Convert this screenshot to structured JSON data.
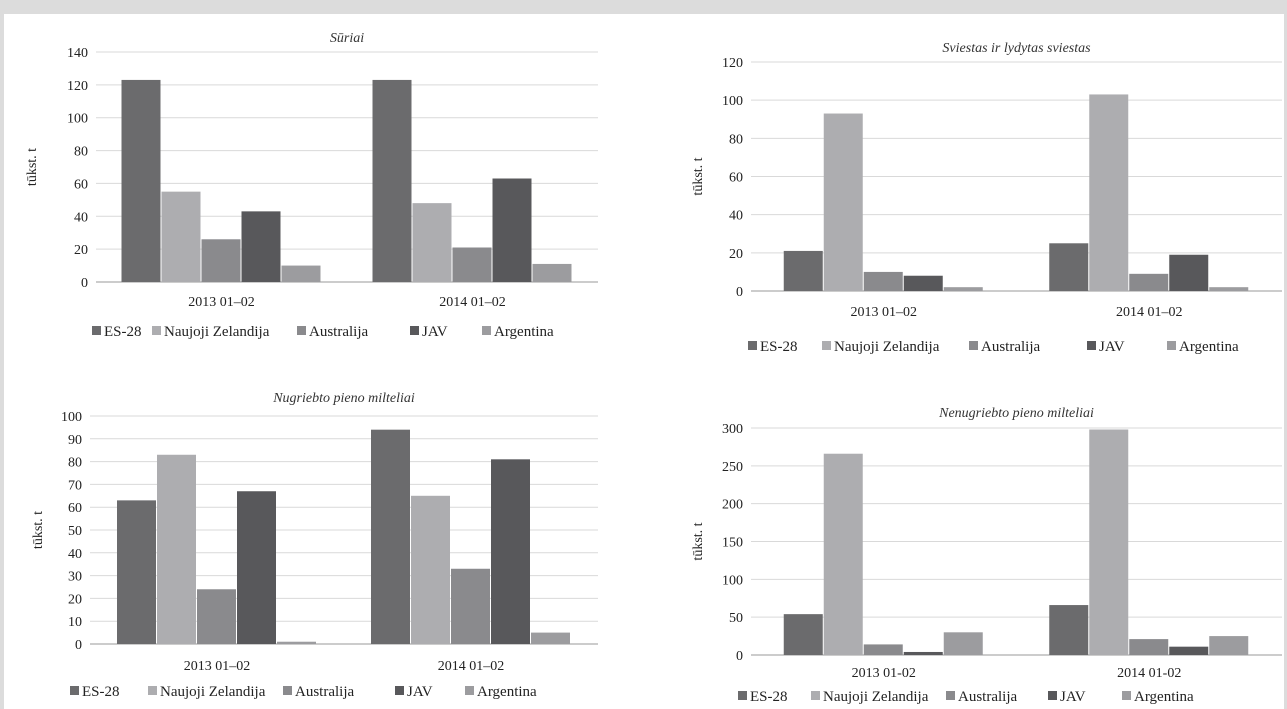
{
  "colors": [
    "#6b6b6d",
    "#adadb0",
    "#8a8a8d",
    "#58585b",
    "#9c9c9f"
  ],
  "legend_labels": [
    "ES-28",
    "Naujoji Zelandija",
    "Australija",
    "JAV",
    "Argentina"
  ],
  "chart_data": [
    {
      "type": "bar",
      "title": "Sūriai",
      "ylabel": "tūkst. t",
      "ylim": [
        0,
        140
      ],
      "yticks": [
        "0",
        "20",
        "40",
        "60",
        "80",
        "100",
        "120",
        "140"
      ],
      "categories": [
        "2013 01–02",
        "2014 01–02"
      ],
      "series": [
        {
          "name": "ES-28",
          "values": [
            123,
            123
          ]
        },
        {
          "name": "Naujoji Zelandija",
          "values": [
            55,
            48
          ]
        },
        {
          "name": "Australija",
          "values": [
            26,
            21
          ]
        },
        {
          "name": "JAV",
          "values": [
            43,
            63
          ]
        },
        {
          "name": "Argentina",
          "values": [
            10,
            11
          ]
        }
      ],
      "grid": true,
      "legend": "bottom"
    },
    {
      "type": "bar",
      "title": "Sviestas ir lydytas sviestas",
      "ylabel": "tūkst. t",
      "ylim": [
        0,
        120
      ],
      "yticks": [
        "0",
        "20",
        "40",
        "60",
        "80",
        "100",
        "120"
      ],
      "categories": [
        "2013 01–02",
        "2014 01–02"
      ],
      "series": [
        {
          "name": "ES-28",
          "values": [
            21,
            25
          ]
        },
        {
          "name": "Naujoji Zelandija",
          "values": [
            93,
            103
          ]
        },
        {
          "name": "Australija",
          "values": [
            10,
            9
          ]
        },
        {
          "name": "JAV",
          "values": [
            8,
            19
          ]
        },
        {
          "name": "Argentina",
          "values": [
            2,
            2
          ]
        }
      ],
      "grid": true,
      "legend": "bottom"
    },
    {
      "type": "bar",
      "title": "Nugriebto pieno milteliai",
      "ylabel": "tūkst. t",
      "ylim": [
        0,
        100
      ],
      "yticks": [
        "0",
        "10",
        "20",
        "30",
        "40",
        "50",
        "60",
        "70",
        "80",
        "90",
        "100"
      ],
      "categories": [
        "2013 01–02",
        "2014 01–02"
      ],
      "series": [
        {
          "name": "ES-28",
          "values": [
            63,
            94
          ]
        },
        {
          "name": "Naujoji Zelandija",
          "values": [
            83,
            65
          ]
        },
        {
          "name": "Australija",
          "values": [
            24,
            33
          ]
        },
        {
          "name": "JAV",
          "values": [
            67,
            81
          ]
        },
        {
          "name": "Argentina",
          "values": [
            1,
            5
          ]
        }
      ],
      "grid": true,
      "legend": "bottom"
    },
    {
      "type": "bar",
      "title": "Nenugriebto pieno milteliai",
      "ylabel": "tūkst. t",
      "ylim": [
        0,
        300
      ],
      "yticks": [
        "0",
        "50",
        "100",
        "150",
        "200",
        "250",
        "300"
      ],
      "categories": [
        "2013 01-02",
        "2014 01-02"
      ],
      "series": [
        {
          "name": "ES-28",
          "values": [
            54,
            66
          ]
        },
        {
          "name": "Naujoji Zelandija",
          "values": [
            266,
            298
          ]
        },
        {
          "name": "Australija",
          "values": [
            14,
            21
          ]
        },
        {
          "name": "JAV",
          "values": [
            4,
            11
          ]
        },
        {
          "name": "Argentina",
          "values": [
            30,
            25
          ]
        }
      ],
      "grid": true,
      "legend": "bottom"
    }
  ]
}
